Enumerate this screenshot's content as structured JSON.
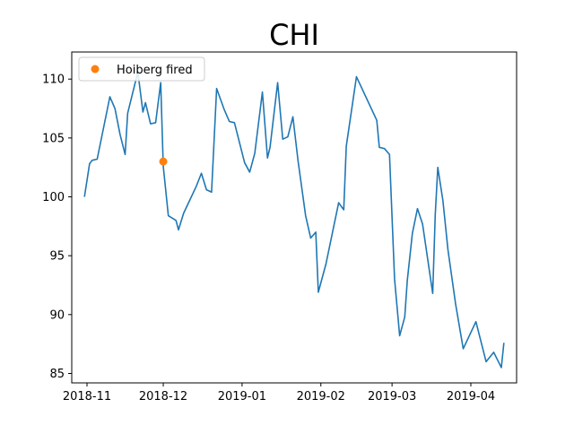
{
  "chart_data": {
    "type": "line",
    "title": "CHI",
    "xlabel": "",
    "ylabel": "",
    "x_ticks": [
      "2018-11",
      "2018-12",
      "2019-01",
      "2019-02",
      "2019-03",
      "2019-04"
    ],
    "y_ticks": [
      85,
      90,
      95,
      100,
      105,
      110
    ],
    "xlim": [
      "2018-10-26",
      "2019-04-19"
    ],
    "ylim": [
      84.2,
      112.3
    ],
    "grid": false,
    "legend": {
      "placement": "top-left",
      "entries": [
        "Hoiberg fired"
      ]
    },
    "series": [
      {
        "color": "#1f77b4",
        "points": [
          [
            "2018-10-31",
            100.0
          ],
          [
            "2018-11-02",
            102.8
          ],
          [
            "2018-11-03",
            103.1
          ],
          [
            "2018-11-05",
            103.2
          ],
          [
            "2018-11-10",
            108.5
          ],
          [
            "2018-11-12",
            107.5
          ],
          [
            "2018-11-14",
            105.3
          ],
          [
            "2018-11-16",
            103.6
          ],
          [
            "2018-11-17",
            107.1
          ],
          [
            "2018-11-21",
            110.6
          ],
          [
            "2018-11-23",
            107.2
          ],
          [
            "2018-11-24",
            108.0
          ],
          [
            "2018-11-26",
            106.2
          ],
          [
            "2018-11-28",
            106.3
          ],
          [
            "2018-11-30",
            109.7
          ],
          [
            "2018-12-01",
            102.6
          ],
          [
            "2018-12-03",
            98.4
          ],
          [
            "2018-12-06",
            98.0
          ],
          [
            "2018-12-07",
            97.2
          ],
          [
            "2018-12-09",
            98.6
          ],
          [
            "2018-12-14",
            100.9
          ],
          [
            "2018-12-16",
            102.0
          ],
          [
            "2018-12-18",
            100.6
          ],
          [
            "2018-12-20",
            100.4
          ],
          [
            "2018-12-22",
            109.2
          ],
          [
            "2018-12-25",
            107.4
          ],
          [
            "2018-12-27",
            106.4
          ],
          [
            "2018-12-29",
            106.3
          ],
          [
            "2019-01-02",
            102.9
          ],
          [
            "2019-01-04",
            102.1
          ],
          [
            "2019-01-06",
            103.7
          ],
          [
            "2019-01-09",
            108.9
          ],
          [
            "2019-01-11",
            103.3
          ],
          [
            "2019-01-12",
            104.2
          ],
          [
            "2019-01-15",
            109.7
          ],
          [
            "2019-01-17",
            104.9
          ],
          [
            "2019-01-19",
            105.1
          ],
          [
            "2019-01-21",
            106.8
          ],
          [
            "2019-01-23",
            103.1
          ],
          [
            "2019-01-26",
            98.4
          ],
          [
            "2019-01-28",
            96.5
          ],
          [
            "2019-01-30",
            97.0
          ],
          [
            "2019-01-31",
            91.9
          ],
          [
            "2019-02-03",
            94.3
          ],
          [
            "2019-02-08",
            99.5
          ],
          [
            "2019-02-10",
            98.9
          ],
          [
            "2019-02-11",
            104.3
          ],
          [
            "2019-02-15",
            110.2
          ],
          [
            "2019-02-23",
            106.5
          ],
          [
            "2019-02-24",
            104.2
          ],
          [
            "2019-02-26",
            104.1
          ],
          [
            "2019-02-28",
            103.6
          ],
          [
            "2019-03-02",
            93.0
          ],
          [
            "2019-03-04",
            88.2
          ],
          [
            "2019-03-06",
            89.8
          ],
          [
            "2019-03-07",
            92.9
          ],
          [
            "2019-03-09",
            96.9
          ],
          [
            "2019-03-11",
            99.0
          ],
          [
            "2019-03-13",
            97.7
          ],
          [
            "2019-03-17",
            91.8
          ],
          [
            "2019-03-18",
            98.5
          ],
          [
            "2019-03-19",
            102.5
          ],
          [
            "2019-03-21",
            99.7
          ],
          [
            "2019-03-23",
            95.5
          ],
          [
            "2019-03-26",
            90.9
          ],
          [
            "2019-03-29",
            87.1
          ],
          [
            "2019-04-03",
            89.4
          ],
          [
            "2019-04-07",
            86.0
          ],
          [
            "2019-04-10",
            86.8
          ],
          [
            "2019-04-13",
            85.5
          ],
          [
            "2019-04-14",
            87.6
          ]
        ]
      },
      {
        "name": "Hoiberg fired",
        "color": "#ff7f0e",
        "marker": "circle",
        "points": [
          [
            "2018-12-01",
            103.0
          ]
        ]
      }
    ]
  }
}
